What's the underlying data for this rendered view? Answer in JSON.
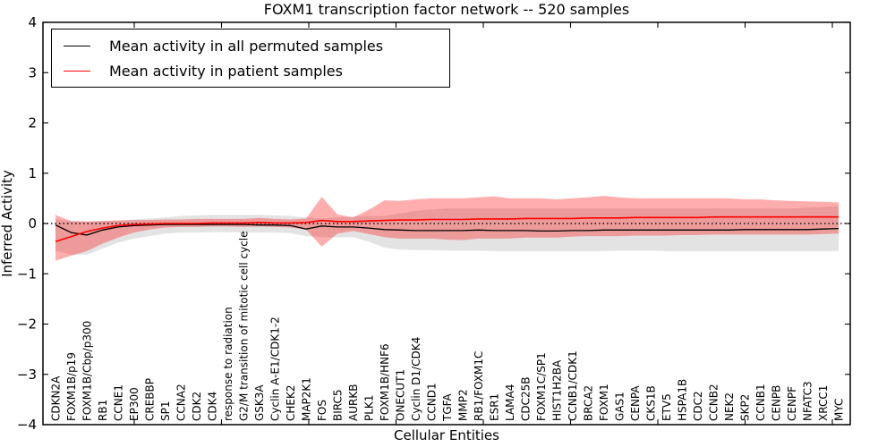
{
  "chart_data": {
    "type": "line",
    "title": "FOXM1 transcription factor network -- 520 samples",
    "xlabel": "Cellular Entities",
    "ylabel": "Inferred Activity",
    "ylim": [
      -4,
      4
    ],
    "yticks": [
      4,
      3,
      2,
      1,
      0,
      -1,
      -2,
      -3,
      -4
    ],
    "grid": false,
    "legend_position": "upper left",
    "zero_reference_line": {
      "y": 0,
      "style": "dotted",
      "color": "#000000"
    },
    "x_tick_label_rotation_deg": 90,
    "categories": [
      "CDKN2A",
      "FOXM1B/p19",
      "FOXM1B/Cbp/p300",
      "RB1",
      "CCNE1",
      "EP300",
      "CREBBP",
      "SP1",
      "CCNA2",
      "CDK2",
      "CDK4",
      "response to radiation",
      "G2/M transition of mitotic cell cycle",
      "GSK3A",
      "Cyclin A-E1/CDK1-2",
      "CHEK2",
      "MAP2K1",
      "FOS",
      "BIRC5",
      "AURKB",
      "PLK1",
      "FOXM1B/HNF6",
      "ONECUT1",
      "Cyclin D1/CDK4",
      "CCND1",
      "TGFA",
      "MMP2",
      "RB1/FOXM1C",
      "ESR1",
      "LAMA4",
      "CDC25B",
      "FOXM1C/SP1",
      "HIST1H2BA",
      "CCNB1/CDK1",
      "BRCA2",
      "FOXM1",
      "GAS1",
      "CENPA",
      "CKS1B",
      "ETV5",
      "HSPA1B",
      "CDC2",
      "CCNB2",
      "NEK2",
      "SKP2",
      "CCNB1",
      "CENPB",
      "CENPF",
      "NFATC3",
      "XRCC1",
      "MYC"
    ],
    "series": [
      {
        "name": "Mean activity in all permuted samples",
        "type": "line",
        "color": "#000000",
        "values": [
          -0.03,
          -0.18,
          -0.23,
          -0.13,
          -0.07,
          -0.04,
          -0.03,
          -0.02,
          -0.02,
          -0.02,
          -0.02,
          -0.02,
          -0.02,
          -0.03,
          -0.03,
          -0.04,
          -0.11,
          -0.05,
          -0.07,
          -0.07,
          -0.09,
          -0.12,
          -0.13,
          -0.14,
          -0.14,
          -0.14,
          -0.14,
          -0.13,
          -0.14,
          -0.14,
          -0.14,
          -0.15,
          -0.15,
          -0.14,
          -0.14,
          -0.13,
          -0.13,
          -0.13,
          -0.13,
          -0.13,
          -0.13,
          -0.13,
          -0.13,
          -0.13,
          -0.12,
          -0.12,
          -0.12,
          -0.12,
          -0.12,
          -0.11,
          -0.1
        ]
      },
      {
        "name": "Mean activity in patient samples",
        "type": "line",
        "color": "#ff0000",
        "values": [
          -0.36,
          -0.26,
          -0.16,
          -0.09,
          -0.04,
          -0.02,
          -0.01,
          0,
          0,
          0,
          0.01,
          0.01,
          0.01,
          0.02,
          0.01,
          0.01,
          0.02,
          0.06,
          0.04,
          0.04,
          0.05,
          0.06,
          0.07,
          0.07,
          0.08,
          0.08,
          0.08,
          0.09,
          0.09,
          0.09,
          0.1,
          0.1,
          0.1,
          0.1,
          0.11,
          0.11,
          0.11,
          0.12,
          0.12,
          0.12,
          0.12,
          0.12,
          0.13,
          0.13,
          0.13,
          0.13,
          0.13,
          0.13,
          0.13,
          0.13,
          0.13
        ]
      },
      {
        "name": "Permuted samples shaded range",
        "type": "band",
        "color": "#000000",
        "opacity": 0.11,
        "lower": [
          -0.54,
          -0.62,
          -0.62,
          -0.5,
          -0.38,
          -0.3,
          -0.25,
          -0.2,
          -0.18,
          -0.18,
          -0.17,
          -0.17,
          -0.18,
          -0.18,
          -0.18,
          -0.19,
          -0.25,
          -0.27,
          -0.28,
          -0.27,
          -0.36,
          -0.48,
          -0.52,
          -0.53,
          -0.53,
          -0.54,
          -0.54,
          -0.54,
          -0.55,
          -0.55,
          -0.55,
          -0.55,
          -0.55,
          -0.55,
          -0.55,
          -0.55,
          -0.54,
          -0.54,
          -0.54,
          -0.55,
          -0.55,
          -0.55,
          -0.55,
          -0.55,
          -0.55,
          -0.55,
          -0.55,
          -0.55,
          -0.55,
          -0.55,
          -0.55
        ],
        "upper": [
          0.08,
          0.05,
          0.04,
          0.05,
          0.06,
          0.08,
          0.1,
          0.12,
          0.15,
          0.16,
          0.17,
          0.17,
          0.17,
          0.17,
          0.16,
          0.15,
          0.12,
          0.1,
          0.12,
          0.14,
          0.15,
          0.15,
          0.2,
          0.25,
          0.28,
          0.3,
          0.3,
          0.3,
          0.3,
          0.3,
          0.3,
          0.3,
          0.3,
          0.3,
          0.3,
          0.3,
          0.3,
          0.3,
          0.3,
          0.3,
          0.3,
          0.3,
          0.3,
          0.3,
          0.3,
          0.3,
          0.3,
          0.3,
          0.32,
          0.33,
          0.35
        ]
      },
      {
        "name": "Patient samples shaded range",
        "type": "band",
        "color": "#ff0000",
        "opacity": 0.32,
        "lower": [
          -0.74,
          -0.64,
          -0.55,
          -0.4,
          -0.28,
          -0.18,
          -0.12,
          -0.08,
          -0.07,
          -0.07,
          -0.06,
          -0.06,
          -0.07,
          -0.06,
          -0.07,
          -0.08,
          -0.12,
          -0.46,
          -0.2,
          -0.15,
          -0.21,
          -0.27,
          -0.3,
          -0.3,
          -0.3,
          -0.32,
          -0.33,
          -0.3,
          -0.3,
          -0.3,
          -0.28,
          -0.28,
          -0.28,
          -0.26,
          -0.25,
          -0.25,
          -0.25,
          -0.24,
          -0.24,
          -0.24,
          -0.23,
          -0.23,
          -0.22,
          -0.22,
          -0.22,
          -0.22,
          -0.22,
          -0.22,
          -0.22,
          -0.21,
          -0.2
        ],
        "upper": [
          0.17,
          0.05,
          0.04,
          0.05,
          0.06,
          0.07,
          0.07,
          0.08,
          0.08,
          0.09,
          0.09,
          0.09,
          0.09,
          0.11,
          0.09,
          0.08,
          0.1,
          0.53,
          0.18,
          0.12,
          0.27,
          0.46,
          0.45,
          0.48,
          0.5,
          0.5,
          0.5,
          0.52,
          0.54,
          0.5,
          0.5,
          0.5,
          0.48,
          0.5,
          0.52,
          0.55,
          0.52,
          0.5,
          0.5,
          0.5,
          0.5,
          0.5,
          0.5,
          0.5,
          0.48,
          0.48,
          0.46,
          0.45,
          0.44,
          0.43,
          0.42
        ]
      }
    ],
    "legend": [
      {
        "label": "Mean activity in all permuted samples",
        "color": "#000000"
      },
      {
        "label": "Mean activity in patient samples",
        "color": "#ff0000"
      }
    ]
  }
}
